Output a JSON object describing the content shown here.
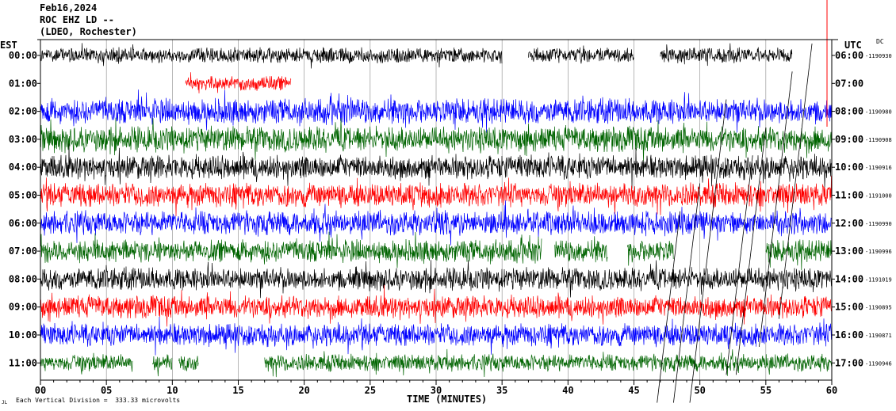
{
  "header": {
    "date": "Feb16,2024",
    "station": "ROC EHZ LD --",
    "network": "(LDEO, Rochester)"
  },
  "left_zone": "EST",
  "right_zone": "UTC",
  "dc_label": "DC",
  "footer": {
    "scale_text": "Each Vertical Division =  333.33 microvolts",
    "corner_mark": "JL"
  },
  "colors": {
    "black": "#000000",
    "red": "#ff0000",
    "blue": "#0000ff",
    "green": "#006400"
  },
  "chart_data": {
    "type": "line",
    "title": "Feb16,2024",
    "subtitle": "ROC EHZ LD --",
    "xlabel": "TIME (MINUTES)",
    "ylabel": "",
    "xlim": [
      0,
      60
    ],
    "x_ticks": [
      "00",
      "05",
      "10",
      "15",
      "20",
      "25",
      "30",
      "35",
      "40",
      "45",
      "50",
      "55",
      "60"
    ],
    "grid": true,
    "rows": [
      {
        "est": "00:00",
        "utc": "06:00",
        "dc": "-1190930",
        "color": "black",
        "amp": 0.55,
        "segments": [
          [
            0,
            35
          ],
          [
            37,
            45
          ],
          [
            47,
            57
          ]
        ]
      },
      {
        "est": "01:00",
        "utc": "07:00",
        "dc": "",
        "color": "red",
        "amp": 0.5,
        "segments": [
          [
            11,
            19
          ]
        ]
      },
      {
        "est": "02:00",
        "utc": "08:00",
        "dc": "-1190980",
        "color": "blue",
        "amp": 0.9,
        "segments": [
          [
            0,
            60
          ]
        ]
      },
      {
        "est": "03:00",
        "utc": "09:00",
        "dc": "-1190908",
        "color": "green",
        "amp": 0.9,
        "segments": [
          [
            0,
            60
          ]
        ]
      },
      {
        "est": "04:00",
        "utc": "10:00",
        "dc": "-1190916",
        "color": "black",
        "amp": 0.85,
        "segments": [
          [
            0,
            60
          ]
        ]
      },
      {
        "est": "05:00",
        "utc": "11:00",
        "dc": "-1191000",
        "color": "red",
        "amp": 0.85,
        "segments": [
          [
            0,
            60
          ]
        ]
      },
      {
        "est": "06:00",
        "utc": "12:00",
        "dc": "-1190990",
        "color": "blue",
        "amp": 0.85,
        "segments": [
          [
            0,
            60
          ]
        ]
      },
      {
        "est": "07:00",
        "utc": "13:00",
        "dc": "-1190996",
        "color": "green",
        "amp": 0.8,
        "segments": [
          [
            0,
            38
          ],
          [
            39,
            43
          ],
          [
            44.5,
            48
          ],
          [
            55,
            60
          ]
        ]
      },
      {
        "est": "08:00",
        "utc": "14:00",
        "dc": "-1191019",
        "color": "black",
        "amp": 0.8,
        "segments": [
          [
            0,
            60
          ]
        ]
      },
      {
        "est": "09:00",
        "utc": "15:00",
        "dc": "-1190895",
        "color": "red",
        "amp": 0.8,
        "segments": [
          [
            0,
            60
          ]
        ]
      },
      {
        "est": "10:00",
        "utc": "16:00",
        "dc": "-1190871",
        "color": "blue",
        "amp": 0.8,
        "segments": [
          [
            0,
            60
          ]
        ]
      },
      {
        "est": "11:00",
        "utc": "17:00",
        "dc": "-1190946",
        "color": "green",
        "amp": 0.6,
        "segments": [
          [
            0,
            7
          ],
          [
            8.5,
            10
          ],
          [
            10.5,
            12
          ],
          [
            17,
            60
          ]
        ]
      }
    ]
  }
}
